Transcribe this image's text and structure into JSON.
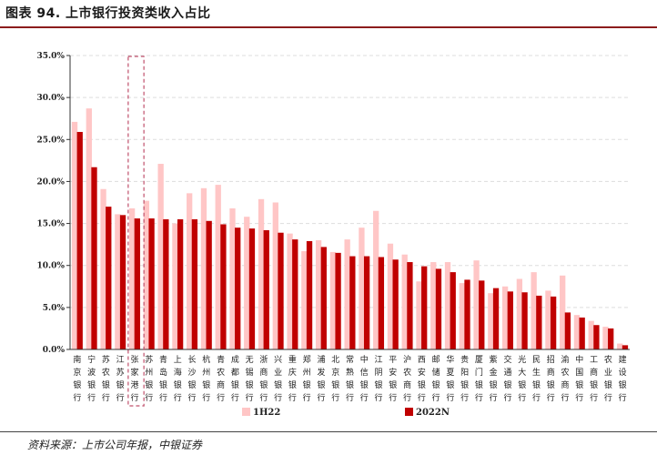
{
  "title": "图表 94. 上市银行投资类收入占比",
  "source": "资料来源：上市公司年报，中银证券",
  "colors": {
    "series_1H22": "#ffc6c6",
    "series_2022N": "#c00000",
    "highlight_box": "#c0506c",
    "axis": "#333333",
    "grid": "#dddddd"
  },
  "chart_data": {
    "type": "bar",
    "categories": [
      "南京银行",
      "宁波银行",
      "苏农银行",
      "江苏银行",
      "张家港行",
      "苏州银行",
      "青岛银行",
      "上海银行",
      "长沙银行",
      "杭州银行",
      "青农商行",
      "成都银行",
      "无锡银行",
      "浙商银行",
      "兴业银行",
      "重庆银行",
      "郑州银行",
      "浦发银行",
      "北京银行",
      "常熟银行",
      "中信银行",
      "江阴银行",
      "平安银行",
      "沪农商行",
      "西安银行",
      "邮储银行",
      "华夏银行",
      "贵阳银行",
      "厦门银行",
      "紫金银行",
      "交通银行",
      "光大银行",
      "民生银行",
      "招商银行",
      "渝农商行",
      "中国银行",
      "工商银行",
      "农业银行",
      "建设银行"
    ],
    "series": [
      {
        "name": "1H22",
        "values": [
          27.1,
          28.7,
          19.1,
          16.1,
          16.8,
          17.7,
          22.1,
          15.0,
          18.6,
          19.2,
          19.6,
          16.8,
          15.8,
          17.9,
          17.5,
          13.8,
          11.7,
          13.0,
          11.6,
          13.1,
          14.5,
          16.5,
          12.6,
          11.3,
          8.1,
          10.4,
          10.4,
          7.9,
          10.6,
          6.7,
          7.5,
          8.4,
          9.2,
          7.0,
          8.8,
          4.1,
          3.4,
          2.7,
          0.7
        ]
      },
      {
        "name": "2022N",
        "values": [
          25.9,
          21.7,
          17.0,
          16.0,
          15.6,
          15.6,
          15.5,
          15.5,
          15.5,
          15.3,
          14.9,
          14.5,
          14.4,
          14.2,
          13.9,
          13.1,
          12.9,
          12.2,
          11.5,
          11.1,
          11.1,
          11.0,
          10.7,
          10.4,
          9.9,
          9.6,
          9.2,
          8.3,
          8.2,
          7.3,
          6.9,
          6.8,
          6.4,
          6.3,
          4.4,
          3.8,
          2.9,
          2.5,
          0.5
        ]
      }
    ],
    "y_ticks": [
      "0.0%",
      "5.0%",
      "10.0%",
      "15.0%",
      "20.0%",
      "25.0%",
      "30.0%",
      "35.0%"
    ],
    "ylim": [
      0,
      35
    ],
    "grid": true,
    "legend_position": "bottom-center",
    "highlighted_category": "张家港行"
  }
}
